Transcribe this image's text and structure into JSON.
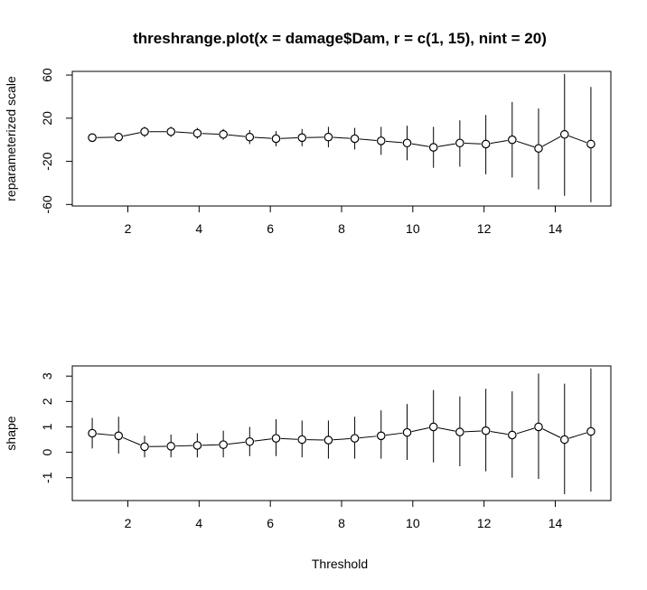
{
  "title": "threshrange.plot(x = damage$Dam, r = c(1, 15), nint = 20)",
  "xlabel": "Threshold",
  "chart_data": [
    {
      "type": "scatter",
      "ylabel": "reparameterized scale",
      "xlabel": "",
      "xlim": [
        0.44,
        15.56
      ],
      "ylim": [
        -61.4,
        63.4
      ],
      "x_ticks": [
        2,
        4,
        6,
        8,
        10,
        12,
        14
      ],
      "y_ticks": [
        -60,
        -20,
        20,
        60
      ],
      "series": [
        {
          "x": [
            1.0,
            1.74,
            2.47,
            3.21,
            3.95,
            4.68,
            5.42,
            6.16,
            6.89,
            7.63,
            8.37,
            9.11,
            9.84,
            10.58,
            11.32,
            12.05,
            12.79,
            13.53,
            14.26,
            15.0
          ],
          "y": [
            2,
            2.5,
            7.5,
            7.5,
            6,
            5,
            2.5,
            1,
            2,
            2.5,
            1,
            -1,
            -3,
            -7,
            -3,
            -4,
            0,
            -8,
            5,
            -4
          ],
          "lower": [
            -1,
            -0.5,
            2.5,
            2.5,
            1,
            0,
            -4,
            -6,
            -6,
            -7,
            -9,
            -14,
            -19,
            -26,
            -25,
            -32,
            -35,
            -46,
            -52,
            -58
          ],
          "upper": [
            4,
            5,
            12,
            12,
            11,
            10,
            9,
            8,
            10,
            12,
            11,
            12,
            13,
            12,
            18,
            23,
            35,
            29,
            61,
            49
          ]
        }
      ]
    },
    {
      "type": "scatter",
      "ylabel": "shape",
      "xlabel": "Threshold",
      "xlim": [
        0.44,
        15.56
      ],
      "ylim": [
        -1.9,
        3.4
      ],
      "x_ticks": [
        2,
        4,
        6,
        8,
        10,
        12,
        14
      ],
      "y_ticks": [
        -1,
        0,
        1,
        2,
        3
      ],
      "series": [
        {
          "x": [
            1.0,
            1.74,
            2.47,
            3.21,
            3.95,
            4.68,
            5.42,
            6.16,
            6.89,
            7.63,
            8.37,
            9.11,
            9.84,
            10.58,
            11.32,
            12.05,
            12.79,
            13.53,
            14.26,
            15.0
          ],
          "y": [
            0.75,
            0.65,
            0.22,
            0.24,
            0.27,
            0.3,
            0.42,
            0.55,
            0.5,
            0.48,
            0.55,
            0.65,
            0.78,
            1.0,
            0.8,
            0.85,
            0.68,
            1.0,
            0.5,
            0.82
          ],
          "lower": [
            0.15,
            -0.05,
            -0.2,
            -0.2,
            -0.2,
            -0.2,
            -0.15,
            -0.15,
            -0.2,
            -0.25,
            -0.25,
            -0.25,
            -0.3,
            -0.4,
            -0.55,
            -0.75,
            -1.0,
            -1.05,
            -1.65,
            -1.55
          ],
          "upper": [
            1.35,
            1.4,
            0.65,
            0.7,
            0.75,
            0.85,
            1.0,
            1.3,
            1.25,
            1.25,
            1.4,
            1.65,
            1.9,
            2.45,
            2.2,
            2.5,
            2.4,
            3.1,
            2.7,
            3.3
          ]
        }
      ]
    }
  ]
}
